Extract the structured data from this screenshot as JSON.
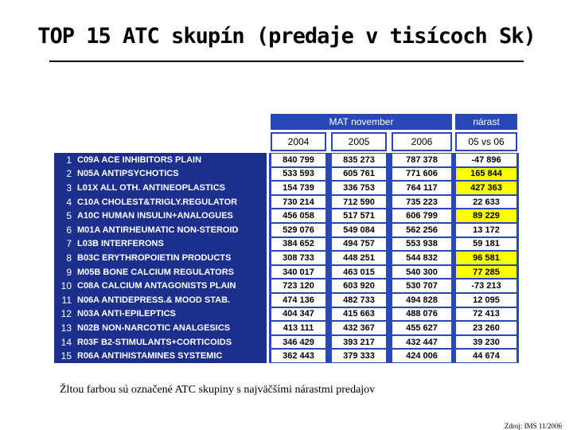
{
  "title": "TOP 15 ATC skupín (predaje v tisícoch Sk)",
  "table": {
    "group_header": "MAT november",
    "growth_header": "nárast",
    "columns": [
      "2004",
      "2005",
      "2006",
      "05 vs 06"
    ],
    "rows": [
      [
        "1",
        "C09A ACE INHIBITORS PLAIN",
        "840 799",
        "835 273",
        "787 378",
        "-47 896"
      ],
      [
        "2",
        "N05A ANTIPSYCHOTICS",
        "533 593",
        "605 761",
        "771 606",
        "165 844"
      ],
      [
        "3",
        "L01X ALL OTH. ANTINEOPLASTICS",
        "154 739",
        "336 753",
        "764 117",
        "427 363"
      ],
      [
        "4",
        "C10A CHOLEST&TRIGLY.REGULATOR",
        "730 214",
        "712 590",
        "735 223",
        "22 633"
      ],
      [
        "5",
        "A10C HUMAN INSULIN+ANALOGUES",
        "456 058",
        "517 571",
        "606 799",
        "89 229"
      ],
      [
        "6",
        "M01A ANTIRHEUMATIC NON-STEROID",
        "529 076",
        "549 084",
        "562 256",
        "13 172"
      ],
      [
        "7",
        "L03B INTERFERONS",
        "384 652",
        "494 757",
        "553 938",
        "59 181"
      ],
      [
        "8",
        "B03C ERYTHROPOIETIN PRODUCTS",
        "308 733",
        "448 251",
        "544 832",
        "96 581"
      ],
      [
        "9",
        "M05B BONE CALCIUM REGULATORS",
        "340 017",
        "463 015",
        "540 300",
        "77 285"
      ],
      [
        "10",
        "C08A CALCIUM ANTAGONISTS PLAIN",
        "723 120",
        "603 920",
        "530 707",
        "-73 213"
      ],
      [
        "11",
        "N06A ANTIDEPRESS.& MOOD STAB.",
        "474 136",
        "482 733",
        "494 828",
        "12 095"
      ],
      [
        "12",
        "N03A ANTI-EPILEPTICS",
        "404 347",
        "415 663",
        "488 076",
        "72 413"
      ],
      [
        "13",
        "N02B NON-NARCOTIC ANALGESICS",
        "413 111",
        "432 367",
        "455 627",
        "23 260"
      ],
      [
        "14",
        "R03F B2-STIMULANTS+CORTICOIDS",
        "346 429",
        "393 217",
        "432 447",
        "39 230"
      ],
      [
        "15",
        "R06A ANTIHISTAMINES SYSTEMIC",
        "362 443",
        "379 333",
        "424 006",
        "44 674"
      ]
    ],
    "highlighted_rows": [
      1,
      2,
      4,
      7,
      8
    ],
    "highlight_color": "#ffff00"
  },
  "footnote": "Žltou farbou sú označené ATC skupiny s najväčšími nárastmi predajov",
  "source": "Zdroj: IMS 11/2006"
}
